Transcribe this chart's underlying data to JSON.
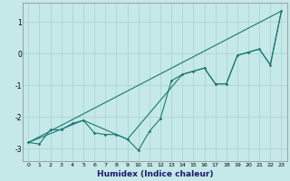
{
  "xlabel": "Humidex (Indice chaleur)",
  "bg_color": "#c5e8e8",
  "grid_color": "#aed4d4",
  "line_color": "#1a7a6e",
  "xlim": [
    -0.5,
    23.5
  ],
  "ylim": [
    -3.4,
    1.6
  ],
  "yticks": [
    -3,
    -2,
    -1,
    0,
    1
  ],
  "xticks": [
    0,
    1,
    2,
    3,
    4,
    5,
    6,
    7,
    8,
    9,
    10,
    11,
    12,
    13,
    14,
    15,
    16,
    17,
    18,
    19,
    20,
    21,
    22,
    23
  ],
  "line1_x": [
    0,
    1,
    2,
    3,
    4,
    5,
    6,
    7,
    8,
    9,
    10,
    11,
    12,
    13,
    14,
    15,
    16,
    17,
    18,
    19,
    20,
    21,
    22,
    23
  ],
  "line1_y": [
    -2.8,
    -2.85,
    -2.4,
    -2.4,
    -2.2,
    -2.1,
    -2.5,
    -2.55,
    -2.55,
    -2.7,
    -3.05,
    -2.45,
    -2.05,
    -0.85,
    -0.65,
    -0.55,
    -0.45,
    -0.95,
    -0.95,
    -0.05,
    0.05,
    0.15,
    -0.35,
    1.35
  ],
  "line2_x": [
    0,
    23
  ],
  "line2_y": [
    -2.8,
    1.35
  ],
  "line3_x": [
    0,
    5,
    9,
    14,
    16,
    17,
    18,
    19,
    20,
    21,
    22,
    23
  ],
  "line3_y": [
    -2.8,
    -2.1,
    -2.7,
    -0.65,
    -0.45,
    -0.95,
    -0.95,
    -0.05,
    0.05,
    0.15,
    -0.35,
    1.35
  ]
}
